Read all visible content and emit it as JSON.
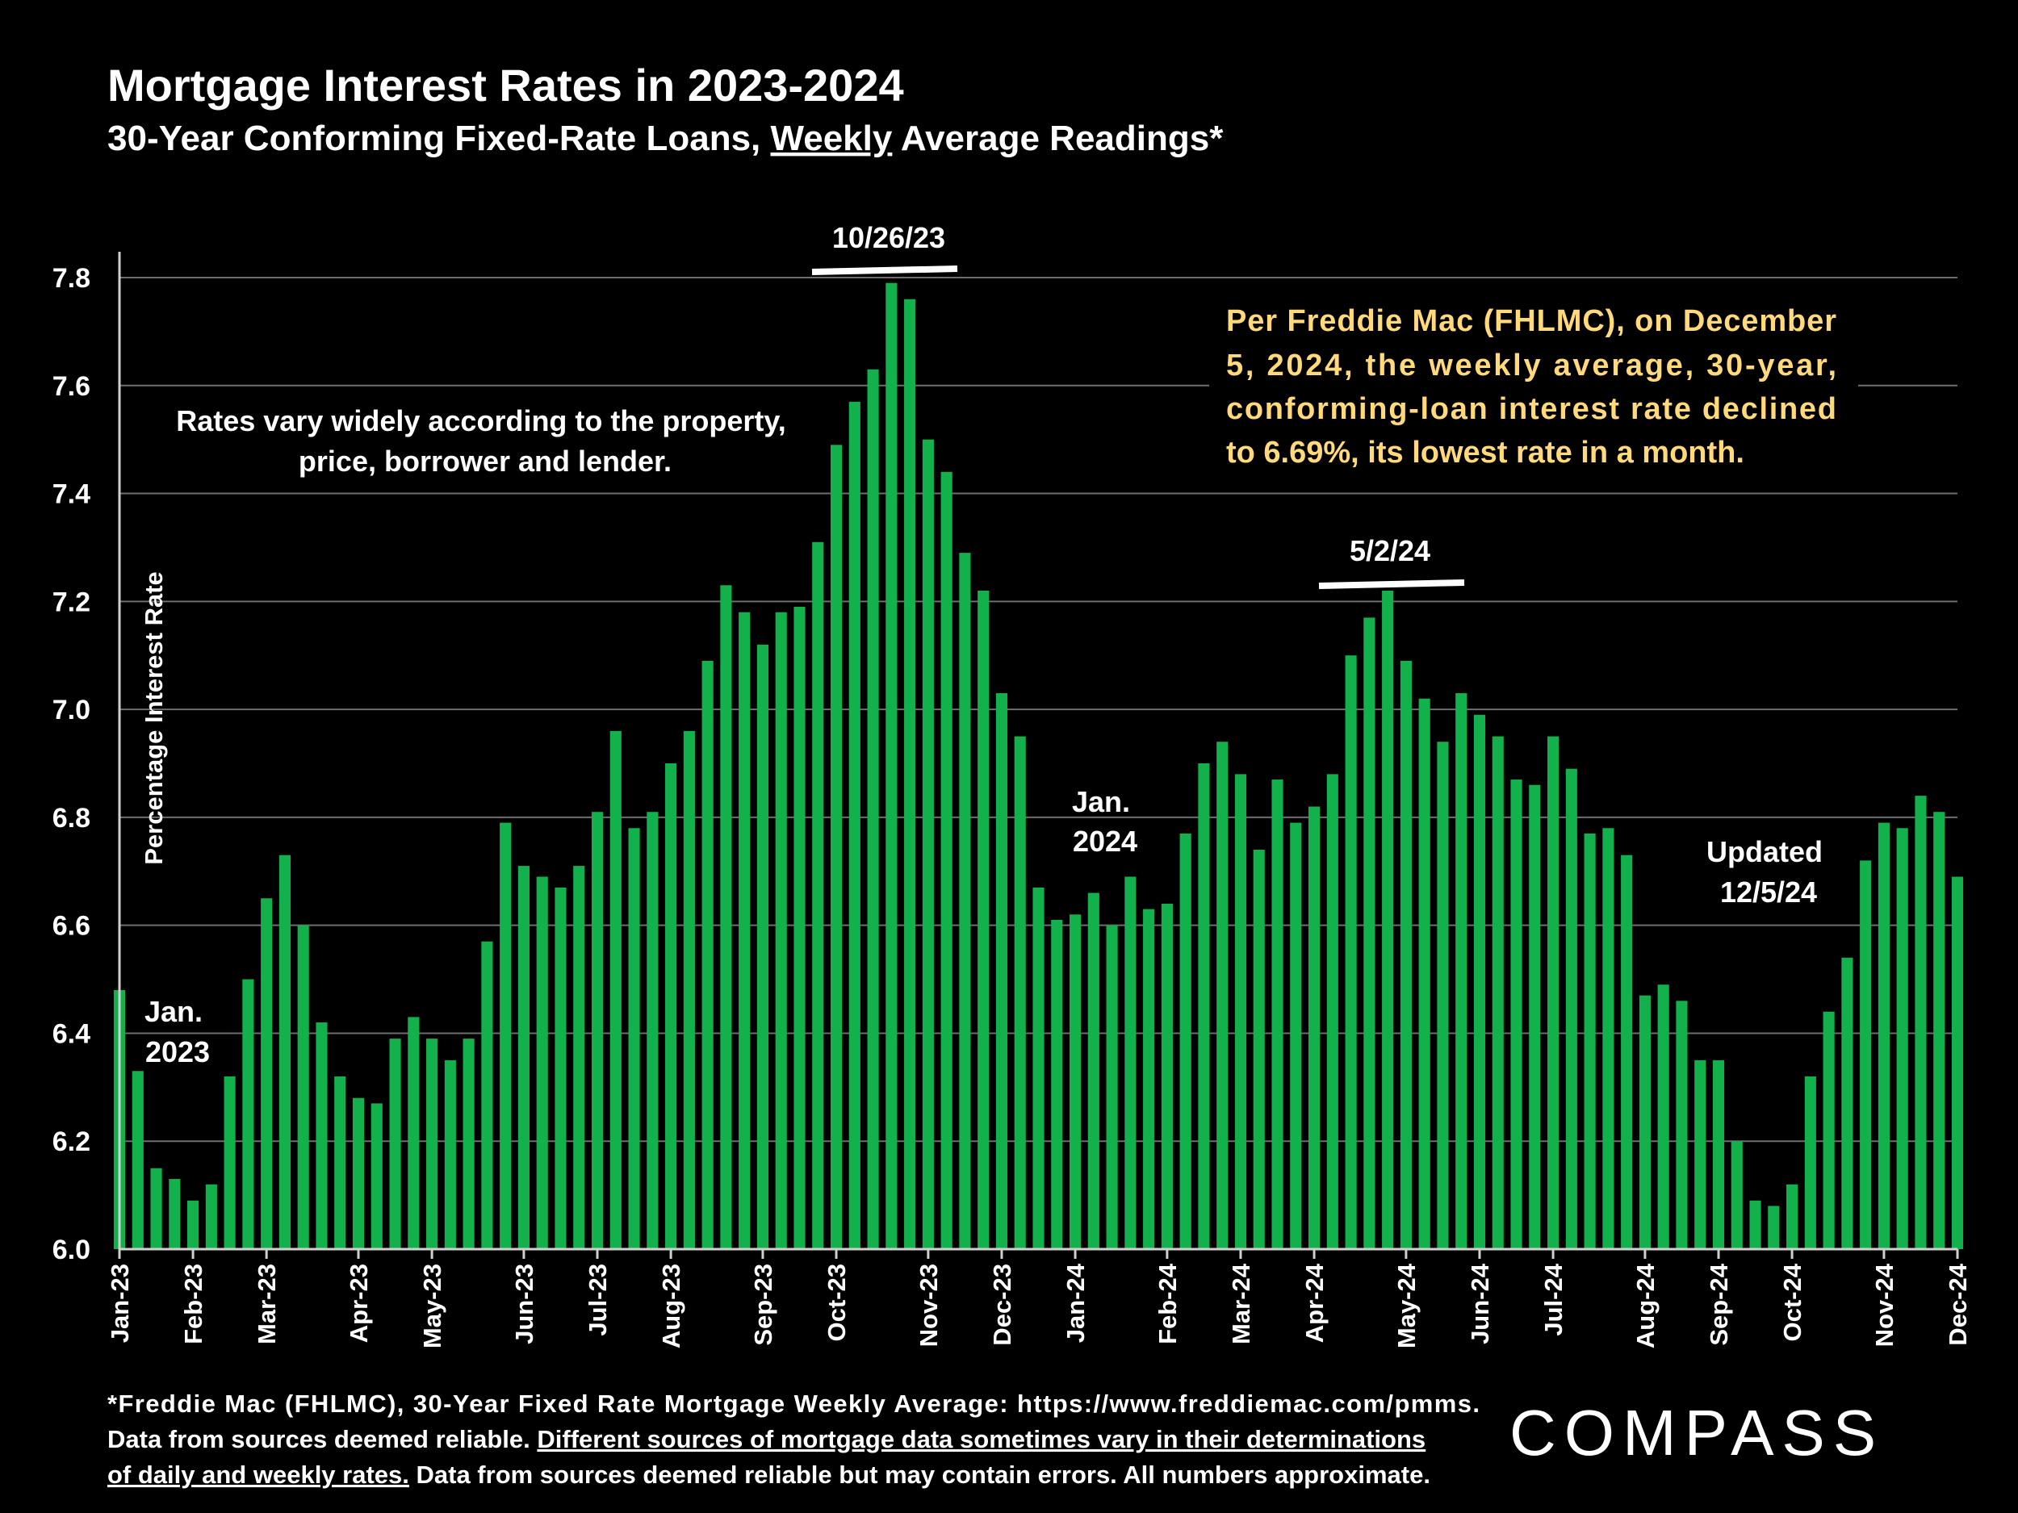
{
  "chart_data": {
    "type": "bar",
    "title": "Mortgage Interest Rates in 2023-2024",
    "subtitle_parts": [
      "30-Year Conforming Fixed-Rate Loans, ",
      "Weekly",
      " Average Readings*"
    ],
    "ylabel": "Percentage Interest  Rate",
    "ylim": [
      6.0,
      7.85
    ],
    "yticks": [
      "6.0",
      "6.2",
      "6.4",
      "6.6",
      "6.8",
      "7.0",
      "7.2",
      "7.4",
      "7.6",
      "7.8"
    ],
    "month_labels": [
      "Jan-23",
      "Feb-23",
      "Mar-23",
      "Apr-23",
      "May-23",
      "Jun-23",
      "Jul-23",
      "Aug-23",
      "Sep-23",
      "Oct-23",
      "Nov-23",
      "Dec-23",
      "Jan-24",
      "Feb-24",
      "Mar-24",
      "Apr-24",
      "May-24",
      "Jun-24",
      "Jul-24",
      "Aug-24",
      "Sep-24",
      "Oct-24",
      "Nov-24",
      "Dec-24"
    ],
    "month_start_index": [
      0,
      4,
      8,
      13,
      17,
      22,
      26,
      30,
      35,
      39,
      44,
      48,
      52,
      57,
      61,
      65,
      70,
      74,
      78,
      83,
      87,
      91,
      96,
      100
    ],
    "values": [
      6.48,
      6.33,
      6.15,
      6.13,
      6.09,
      6.12,
      6.32,
      6.5,
      6.65,
      6.73,
      6.6,
      6.42,
      6.32,
      6.28,
      6.27,
      6.39,
      6.43,
      6.39,
      6.35,
      6.39,
      6.57,
      6.79,
      6.71,
      6.69,
      6.67,
      6.71,
      6.81,
      6.96,
      6.78,
      6.81,
      6.9,
      6.96,
      7.09,
      7.23,
      7.18,
      7.12,
      7.18,
      7.19,
      7.31,
      7.49,
      7.57,
      7.63,
      7.79,
      7.76,
      7.5,
      7.44,
      7.29,
      7.22,
      7.03,
      6.95,
      6.67,
      6.61,
      6.62,
      6.66,
      6.6,
      6.69,
      6.63,
      6.64,
      6.77,
      6.9,
      6.94,
      6.88,
      6.74,
      6.87,
      6.79,
      6.82,
      6.88,
      7.1,
      7.17,
      7.22,
      7.09,
      7.02,
      6.94,
      7.03,
      6.99,
      6.95,
      6.87,
      6.86,
      6.95,
      6.89,
      6.77,
      6.78,
      6.73,
      6.47,
      6.49,
      6.46,
      6.35,
      6.35,
      6.2,
      6.09,
      6.08,
      6.12,
      6.32,
      6.44,
      6.54,
      6.72,
      6.79,
      6.78,
      6.84,
      6.81,
      6.69
    ],
    "bar_color": "#13b14b",
    "grid": true
  },
  "annotations": {
    "peak1": "10/26/23",
    "peak2": "5/2/24",
    "jan2023": [
      "Jan.",
      "2023"
    ],
    "jan2024": [
      "Jan.",
      "2024"
    ],
    "updated": [
      "Updated",
      "12/5/24"
    ],
    "rates_vary": [
      "Rates vary widely according to the property,",
      "price, borrower and lender."
    ],
    "freddie_note": [
      "Per Freddie Mac (FHLMC), on December",
      "5, 2024, the weekly average, 30-year,",
      "conforming-loan interest rate declined",
      "to 6.69%, its lowest rate in a month."
    ]
  },
  "footer": {
    "line1": "*Freddie Mac (FHLMC), 30-Year Fixed Rate Mortgage Weekly Average:  https://www.freddiemac.com/pmms.",
    "line2_plain": "Data from sources deemed reliable. ",
    "line2_underlined": "Different sources of mortgage data sometimes vary in their determinations",
    "line3_underlined": "of daily and weekly rates.",
    "line3_plain": " Data from sources deemed reliable but may contain errors. All numbers approximate."
  },
  "logo": "COMPASS",
  "colors": {
    "background": "#000000",
    "bar": "#13b14b",
    "note": "#ffd97a",
    "grid": "#6e6e6e"
  }
}
